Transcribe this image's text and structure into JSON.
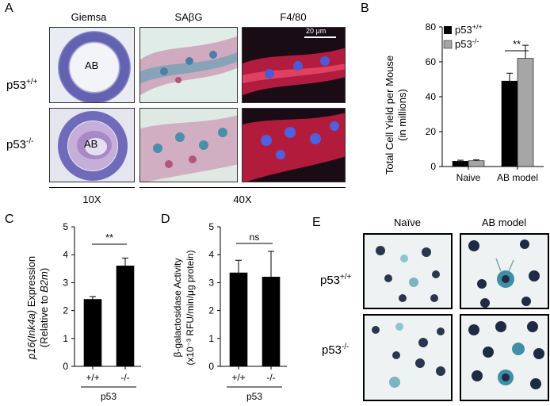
{
  "panels": {
    "A": {
      "label": "A",
      "columns": [
        "Giemsa",
        "SAβG",
        "F4/80"
      ],
      "rows": [
        {
          "base": "p53",
          "sup": "+/+"
        },
        {
          "base": "p53",
          "sup": "-/-"
        }
      ],
      "ab_label": "AB",
      "scale_bar": "20 μm",
      "mag_left": "10X",
      "mag_right": "40X"
    },
    "B": {
      "label": "B",
      "legend": [
        {
          "base": "p53",
          "sup": "+/+",
          "color": "#000000"
        },
        {
          "base": "p53",
          "sup": "-/-",
          "color": "#a6a6a6"
        }
      ],
      "sig": "**"
    },
    "C": {
      "label": "C",
      "sig": "**"
    },
    "D": {
      "label": "D",
      "sig": "ns"
    },
    "E": {
      "label": "E",
      "columns": [
        "Naïve",
        "AB model"
      ],
      "rows": [
        {
          "base": "p53",
          "sup": "+/+"
        },
        {
          "base": "p53",
          "sup": "-/-"
        }
      ]
    }
  },
  "chart_data": [
    {
      "panel": "B",
      "type": "bar",
      "categories": [
        "Naive",
        "AB model"
      ],
      "series": [
        {
          "name": "p53+/+",
          "values": [
            3,
            49
          ],
          "errors": [
            0.6,
            4.5
          ],
          "color": "#000000"
        },
        {
          "name": "p53-/-",
          "values": [
            3.3,
            62
          ],
          "errors": [
            0.5,
            7.5
          ],
          "color": "#a6a6a6"
        }
      ],
      "ylabel": "Total Cell Yield per Mouse",
      "ylabel2": "(in millions)",
      "ylim": [
        0,
        80
      ],
      "yticks": [
        0,
        20,
        40,
        60,
        80
      ]
    },
    {
      "panel": "C",
      "type": "bar",
      "categories": [
        "+/+",
        "-/-"
      ],
      "values": [
        2.4,
        3.6
      ],
      "errors": [
        0.1,
        0.28
      ],
      "xgroup": "p53",
      "ylabel_parts": [
        {
          "text": "p16(Ink4a)",
          "italic": true
        },
        {
          "text": " Expression",
          "italic": false
        }
      ],
      "ylabel2_parts": [
        {
          "text": "(Relative to ",
          "italic": false
        },
        {
          "text": "B2m",
          "italic": true
        },
        {
          "text": ")",
          "italic": false
        }
      ],
      "ylim": [
        0,
        5
      ],
      "yticks": [
        0,
        1,
        2,
        3,
        4,
        5
      ]
    },
    {
      "panel": "D",
      "type": "bar",
      "categories": [
        "+/+",
        "-/-"
      ],
      "values": [
        3.35,
        3.2
      ],
      "errors": [
        0.45,
        0.92
      ],
      "xgroup": "p53",
      "ylabel": "β-galactosidase Activity",
      "ylabel2": "(x10⁻³ RFU/min/μg protein)",
      "ylim": [
        0,
        5
      ],
      "yticks": [
        0,
        1,
        2,
        3,
        4,
        5
      ]
    }
  ]
}
